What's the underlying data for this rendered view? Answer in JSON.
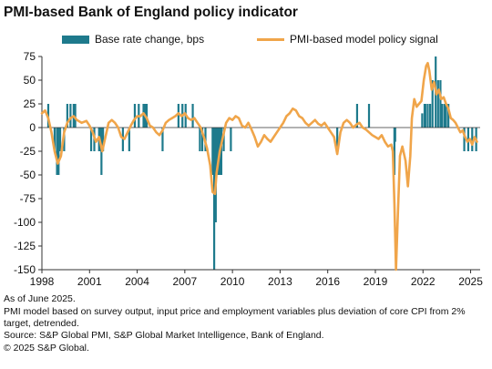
{
  "title": "PMI-based Bank of England policy indicator",
  "legend": {
    "bar_label": "Base rate change, bps",
    "line_label": "PMI-based model policy signal"
  },
  "notes": {
    "as_of": "As of June 2025.",
    "methodology": "PMI model based on survey output, input price and employment variables plus deviation of core CPI from 2% target, detrended.",
    "source": "Source: S&P Global PMI, S&P Global Market Intelligence, Bank of England.",
    "copyright": "© 2025 S&P Global."
  },
  "colors": {
    "bar": "#1e7a8c",
    "line": "#f0a54a",
    "axis": "#333333"
  },
  "chart_data": {
    "type": "bar+line",
    "title": "PMI-based Bank of England policy indicator",
    "xlim": [
      1998,
      2025.6
    ],
    "ylim": [
      -150,
      75
    ],
    "xticks": [
      1998,
      2001,
      2004,
      2007,
      2010,
      2013,
      2016,
      2019,
      2022,
      2025
    ],
    "yticks": [
      75,
      50,
      25,
      0,
      -25,
      -50,
      -75,
      -100,
      -125,
      -150
    ],
    "grid": false,
    "legend_position": "top",
    "series": [
      {
        "name": "Base rate change, bps",
        "kind": "bar",
        "points": [
          [
            1998.4,
            25
          ],
          [
            1998.8,
            -25
          ],
          [
            1998.95,
            -50
          ],
          [
            1999.05,
            -50
          ],
          [
            1999.15,
            -25
          ],
          [
            1999.4,
            -25
          ],
          [
            1999.6,
            25
          ],
          [
            1999.8,
            25
          ],
          [
            2000.0,
            25
          ],
          [
            2000.1,
            25
          ],
          [
            2001.1,
            -25
          ],
          [
            2001.3,
            -25
          ],
          [
            2001.6,
            -25
          ],
          [
            2001.7,
            -25
          ],
          [
            2001.75,
            -50
          ],
          [
            2001.85,
            -25
          ],
          [
            2003.1,
            -25
          ],
          [
            2003.5,
            -25
          ],
          [
            2003.85,
            25
          ],
          [
            2004.1,
            25
          ],
          [
            2004.4,
            25
          ],
          [
            2004.5,
            25
          ],
          [
            2004.6,
            25
          ],
          [
            2005.6,
            -25
          ],
          [
            2006.6,
            25
          ],
          [
            2006.85,
            25
          ],
          [
            2007.05,
            25
          ],
          [
            2007.5,
            25
          ],
          [
            2007.95,
            -25
          ],
          [
            2008.1,
            -25
          ],
          [
            2008.3,
            -25
          ],
          [
            2008.75,
            -50
          ],
          [
            2008.85,
            -150
          ],
          [
            2008.95,
            -100
          ],
          [
            2009.05,
            -50
          ],
          [
            2009.1,
            -50
          ],
          [
            2009.2,
            -50
          ],
          [
            2009.3,
            -50
          ],
          [
            2009.45,
            -25
          ],
          [
            2009.9,
            -25
          ],
          [
            2016.6,
            -25
          ],
          [
            2017.85,
            25
          ],
          [
            2018.6,
            25
          ],
          [
            2020.2,
            -50
          ],
          [
            2020.25,
            -15
          ],
          [
            2021.95,
            15
          ],
          [
            2022.1,
            25
          ],
          [
            2022.15,
            25
          ],
          [
            2022.3,
            25
          ],
          [
            2022.45,
            25
          ],
          [
            2022.6,
            50
          ],
          [
            2022.8,
            75
          ],
          [
            2022.95,
            50
          ],
          [
            2023.1,
            50
          ],
          [
            2023.2,
            25
          ],
          [
            2023.35,
            25
          ],
          [
            2023.45,
            25
          ],
          [
            2023.6,
            25
          ],
          [
            2024.6,
            -25
          ],
          [
            2024.85,
            -25
          ],
          [
            2025.1,
            -25
          ],
          [
            2025.35,
            -25
          ]
        ]
      },
      {
        "name": "PMI-based model policy signal",
        "kind": "line",
        "points": [
          [
            1998.0,
            15
          ],
          [
            1998.2,
            18
          ],
          [
            1998.4,
            10
          ],
          [
            1998.6,
            -5
          ],
          [
            1998.8,
            -25
          ],
          [
            1999.0,
            -38
          ],
          [
            1999.2,
            -30
          ],
          [
            1999.4,
            -5
          ],
          [
            1999.6,
            5
          ],
          [
            1999.8,
            10
          ],
          [
            2000.0,
            12
          ],
          [
            2000.2,
            8
          ],
          [
            2000.5,
            5
          ],
          [
            2000.8,
            7
          ],
          [
            2001.0,
            2
          ],
          [
            2001.2,
            -5
          ],
          [
            2001.4,
            -15
          ],
          [
            2001.6,
            -10
          ],
          [
            2001.8,
            -25
          ],
          [
            2002.0,
            -10
          ],
          [
            2002.2,
            5
          ],
          [
            2002.4,
            8
          ],
          [
            2002.6,
            5
          ],
          [
            2002.8,
            0
          ],
          [
            2003.0,
            -10
          ],
          [
            2003.2,
            -12
          ],
          [
            2003.4,
            -5
          ],
          [
            2003.6,
            2
          ],
          [
            2003.8,
            8
          ],
          [
            2004.0,
            12
          ],
          [
            2004.2,
            12
          ],
          [
            2004.4,
            15
          ],
          [
            2004.6,
            10
          ],
          [
            2004.8,
            2
          ],
          [
            2005.0,
            0
          ],
          [
            2005.2,
            -5
          ],
          [
            2005.4,
            -8
          ],
          [
            2005.6,
            -3
          ],
          [
            2005.8,
            5
          ],
          [
            2006.0,
            8
          ],
          [
            2006.2,
            10
          ],
          [
            2006.4,
            12
          ],
          [
            2006.6,
            15
          ],
          [
            2006.8,
            12
          ],
          [
            2007.0,
            15
          ],
          [
            2007.2,
            10
          ],
          [
            2007.4,
            8
          ],
          [
            2007.6,
            10
          ],
          [
            2007.8,
            5
          ],
          [
            2008.0,
            0
          ],
          [
            2008.2,
            -10
          ],
          [
            2008.4,
            -22
          ],
          [
            2008.6,
            -40
          ],
          [
            2008.75,
            -68
          ],
          [
            2008.9,
            -70
          ],
          [
            2009.0,
            -48
          ],
          [
            2009.2,
            -25
          ],
          [
            2009.4,
            -10
          ],
          [
            2009.6,
            5
          ],
          [
            2009.8,
            10
          ],
          [
            2010.0,
            8
          ],
          [
            2010.2,
            12
          ],
          [
            2010.4,
            10
          ],
          [
            2010.6,
            2
          ],
          [
            2010.8,
            0
          ],
          [
            2011.0,
            5
          ],
          [
            2011.2,
            -2
          ],
          [
            2011.4,
            -10
          ],
          [
            2011.6,
            -20
          ],
          [
            2011.8,
            -15
          ],
          [
            2012.0,
            -8
          ],
          [
            2012.2,
            -12
          ],
          [
            2012.4,
            -15
          ],
          [
            2012.6,
            -10
          ],
          [
            2012.8,
            -5
          ],
          [
            2013.0,
            0
          ],
          [
            2013.2,
            5
          ],
          [
            2013.4,
            12
          ],
          [
            2013.6,
            15
          ],
          [
            2013.8,
            20
          ],
          [
            2014.0,
            18
          ],
          [
            2014.2,
            12
          ],
          [
            2014.4,
            10
          ],
          [
            2014.6,
            5
          ],
          [
            2014.8,
            2
          ],
          [
            2015.0,
            5
          ],
          [
            2015.2,
            8
          ],
          [
            2015.4,
            4
          ],
          [
            2015.6,
            2
          ],
          [
            2015.8,
            5
          ],
          [
            2016.0,
            0
          ],
          [
            2016.2,
            -5
          ],
          [
            2016.4,
            -10
          ],
          [
            2016.6,
            -28
          ],
          [
            2016.8,
            -5
          ],
          [
            2017.0,
            5
          ],
          [
            2017.2,
            8
          ],
          [
            2017.4,
            5
          ],
          [
            2017.6,
            0
          ],
          [
            2017.8,
            3
          ],
          [
            2018.0,
            5
          ],
          [
            2018.2,
            0
          ],
          [
            2018.4,
            -2
          ],
          [
            2018.6,
            -5
          ],
          [
            2018.8,
            -8
          ],
          [
            2019.0,
            -10
          ],
          [
            2019.2,
            -12
          ],
          [
            2019.4,
            -8
          ],
          [
            2019.6,
            -15
          ],
          [
            2019.8,
            -20
          ],
          [
            2020.0,
            -18
          ],
          [
            2020.1,
            -25
          ],
          [
            2020.2,
            -80
          ],
          [
            2020.3,
            -150
          ],
          [
            2020.4,
            -100
          ],
          [
            2020.55,
            -30
          ],
          [
            2020.7,
            -20
          ],
          [
            2020.9,
            -35
          ],
          [
            2021.05,
            -62
          ],
          [
            2021.2,
            -30
          ],
          [
            2021.3,
            10
          ],
          [
            2021.45,
            30
          ],
          [
            2021.6,
            22
          ],
          [
            2021.75,
            25
          ],
          [
            2021.9,
            28
          ],
          [
            2022.05,
            50
          ],
          [
            2022.2,
            65
          ],
          [
            2022.3,
            68
          ],
          [
            2022.4,
            60
          ],
          [
            2022.55,
            40
          ],
          [
            2022.7,
            48
          ],
          [
            2022.85,
            35
          ],
          [
            2023.0,
            40
          ],
          [
            2023.15,
            30
          ],
          [
            2023.3,
            32
          ],
          [
            2023.45,
            25
          ],
          [
            2023.6,
            20
          ],
          [
            2023.75,
            10
          ],
          [
            2023.9,
            8
          ],
          [
            2024.05,
            5
          ],
          [
            2024.2,
            0
          ],
          [
            2024.35,
            -5
          ],
          [
            2024.5,
            -3
          ],
          [
            2024.65,
            -10
          ],
          [
            2024.8,
            -15
          ],
          [
            2024.95,
            -12
          ],
          [
            2025.1,
            -18
          ],
          [
            2025.25,
            -10
          ],
          [
            2025.4,
            -15
          ]
        ]
      }
    ]
  }
}
